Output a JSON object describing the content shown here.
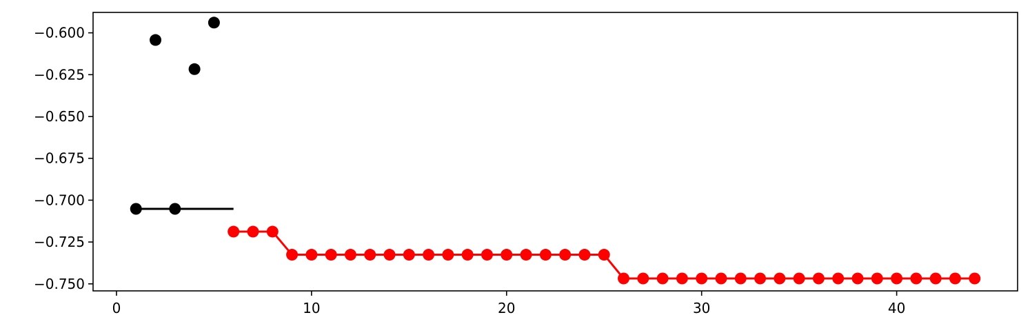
{
  "chart_data": {
    "type": "scatter",
    "title": "",
    "xlabel": "",
    "ylabel": "",
    "xlim": [
      -1.2,
      46.2
    ],
    "ylim": [
      -0.7542,
      -0.5878
    ],
    "grid": false,
    "x_ticks": [
      {
        "value": 0,
        "label": "0"
      },
      {
        "value": 10,
        "label": "10"
      },
      {
        "value": 20,
        "label": "20"
      },
      {
        "value": 30,
        "label": "30"
      },
      {
        "value": 40,
        "label": "40"
      }
    ],
    "y_ticks": [
      {
        "value": -0.6,
        "label": "−0.600"
      },
      {
        "value": -0.625,
        "label": "−0.625"
      },
      {
        "value": -0.65,
        "label": "−0.650"
      },
      {
        "value": -0.675,
        "label": "−0.675"
      },
      {
        "value": -0.7,
        "label": "−0.700"
      },
      {
        "value": -0.725,
        "label": "−0.725"
      },
      {
        "value": -0.75,
        "label": "−0.750"
      }
    ],
    "series": [
      {
        "color": "#000000",
        "connected": false,
        "points": [
          {
            "x": 1,
            "y": -0.7052
          },
          {
            "x": 2,
            "y": -0.6043
          },
          {
            "x": 3,
            "y": -0.7052
          },
          {
            "x": 4,
            "y": -0.6217
          },
          {
            "x": 5,
            "y": -0.5939
          }
        ]
      },
      {
        "color": "#000000",
        "connected": true,
        "markers": false,
        "points": [
          {
            "x": 1,
            "y": -0.7052
          },
          {
            "x": 6,
            "y": -0.7052
          }
        ]
      },
      {
        "color": "#ff0000",
        "connected": true,
        "points": [
          {
            "x": 6,
            "y": -0.7188
          },
          {
            "x": 7,
            "y": -0.7188
          },
          {
            "x": 8,
            "y": -0.7188
          },
          {
            "x": 9,
            "y": -0.7326
          },
          {
            "x": 10,
            "y": -0.7326
          },
          {
            "x": 11,
            "y": -0.7326
          },
          {
            "x": 12,
            "y": -0.7326
          },
          {
            "x": 13,
            "y": -0.7326
          },
          {
            "x": 14,
            "y": -0.7326
          },
          {
            "x": 15,
            "y": -0.7326
          },
          {
            "x": 16,
            "y": -0.7326
          },
          {
            "x": 17,
            "y": -0.7326
          },
          {
            "x": 18,
            "y": -0.7326
          },
          {
            "x": 19,
            "y": -0.7326
          },
          {
            "x": 20,
            "y": -0.7326
          },
          {
            "x": 21,
            "y": -0.7326
          },
          {
            "x": 22,
            "y": -0.7326
          },
          {
            "x": 23,
            "y": -0.7326
          },
          {
            "x": 24,
            "y": -0.7326
          },
          {
            "x": 25,
            "y": -0.7326
          },
          {
            "x": 26,
            "y": -0.7468
          },
          {
            "x": 27,
            "y": -0.7468
          },
          {
            "x": 28,
            "y": -0.7468
          },
          {
            "x": 29,
            "y": -0.7468
          },
          {
            "x": 30,
            "y": -0.7468
          },
          {
            "x": 31,
            "y": -0.7468
          },
          {
            "x": 32,
            "y": -0.7468
          },
          {
            "x": 33,
            "y": -0.7468
          },
          {
            "x": 34,
            "y": -0.7468
          },
          {
            "x": 35,
            "y": -0.7468
          },
          {
            "x": 36,
            "y": -0.7468
          },
          {
            "x": 37,
            "y": -0.7468
          },
          {
            "x": 38,
            "y": -0.7468
          },
          {
            "x": 39,
            "y": -0.7468
          },
          {
            "x": 40,
            "y": -0.7468
          },
          {
            "x": 41,
            "y": -0.7468
          },
          {
            "x": 42,
            "y": -0.7468
          },
          {
            "x": 43,
            "y": -0.7468
          },
          {
            "x": 44,
            "y": -0.7468
          }
        ]
      }
    ]
  }
}
